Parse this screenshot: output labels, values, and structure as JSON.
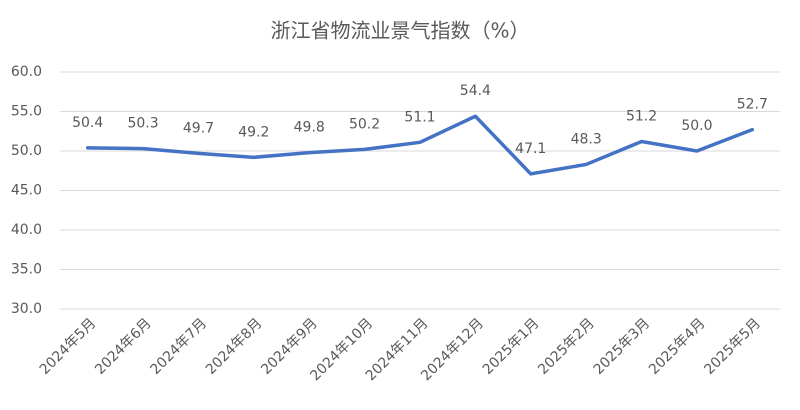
{
  "chart_data": {
    "type": "line",
    "title": "浙江省物流业景气指数（%）",
    "categories": [
      "2024年5月",
      "2024年6月",
      "2024年7月",
      "2024年8月",
      "2024年9月",
      "2024年10月",
      "2024年11月",
      "2024年12月",
      "2025年1月",
      "2025年2月",
      "2025年3月",
      "2025年4月",
      "2025年5月"
    ],
    "series": [
      {
        "name": "浙江省物流业景气指数",
        "color": "#4472c4",
        "values": [
          50.4,
          50.3,
          49.7,
          49.2,
          49.8,
          50.2,
          51.1,
          54.4,
          47.1,
          48.3,
          51.2,
          50.0,
          52.7
        ],
        "value_labels": [
          "50.4",
          "50.3",
          "49.7",
          "49.2",
          "49.8",
          "50.2",
          "51.1",
          "54.4",
          "47.1",
          "48.3",
          "51.2",
          "50.0",
          "52.7"
        ]
      }
    ],
    "ylim": [
      30,
      60
    ],
    "yticks": [
      {
        "value": 30,
        "label": "30.0"
      },
      {
        "value": 35,
        "label": "35.0"
      },
      {
        "value": 40,
        "label": "40.0"
      },
      {
        "value": 45,
        "label": "45.0"
      },
      {
        "value": 50,
        "label": "50.0"
      },
      {
        "value": 55,
        "label": "55.0"
      },
      {
        "value": 60,
        "label": "60.0"
      }
    ],
    "grid": true
  }
}
